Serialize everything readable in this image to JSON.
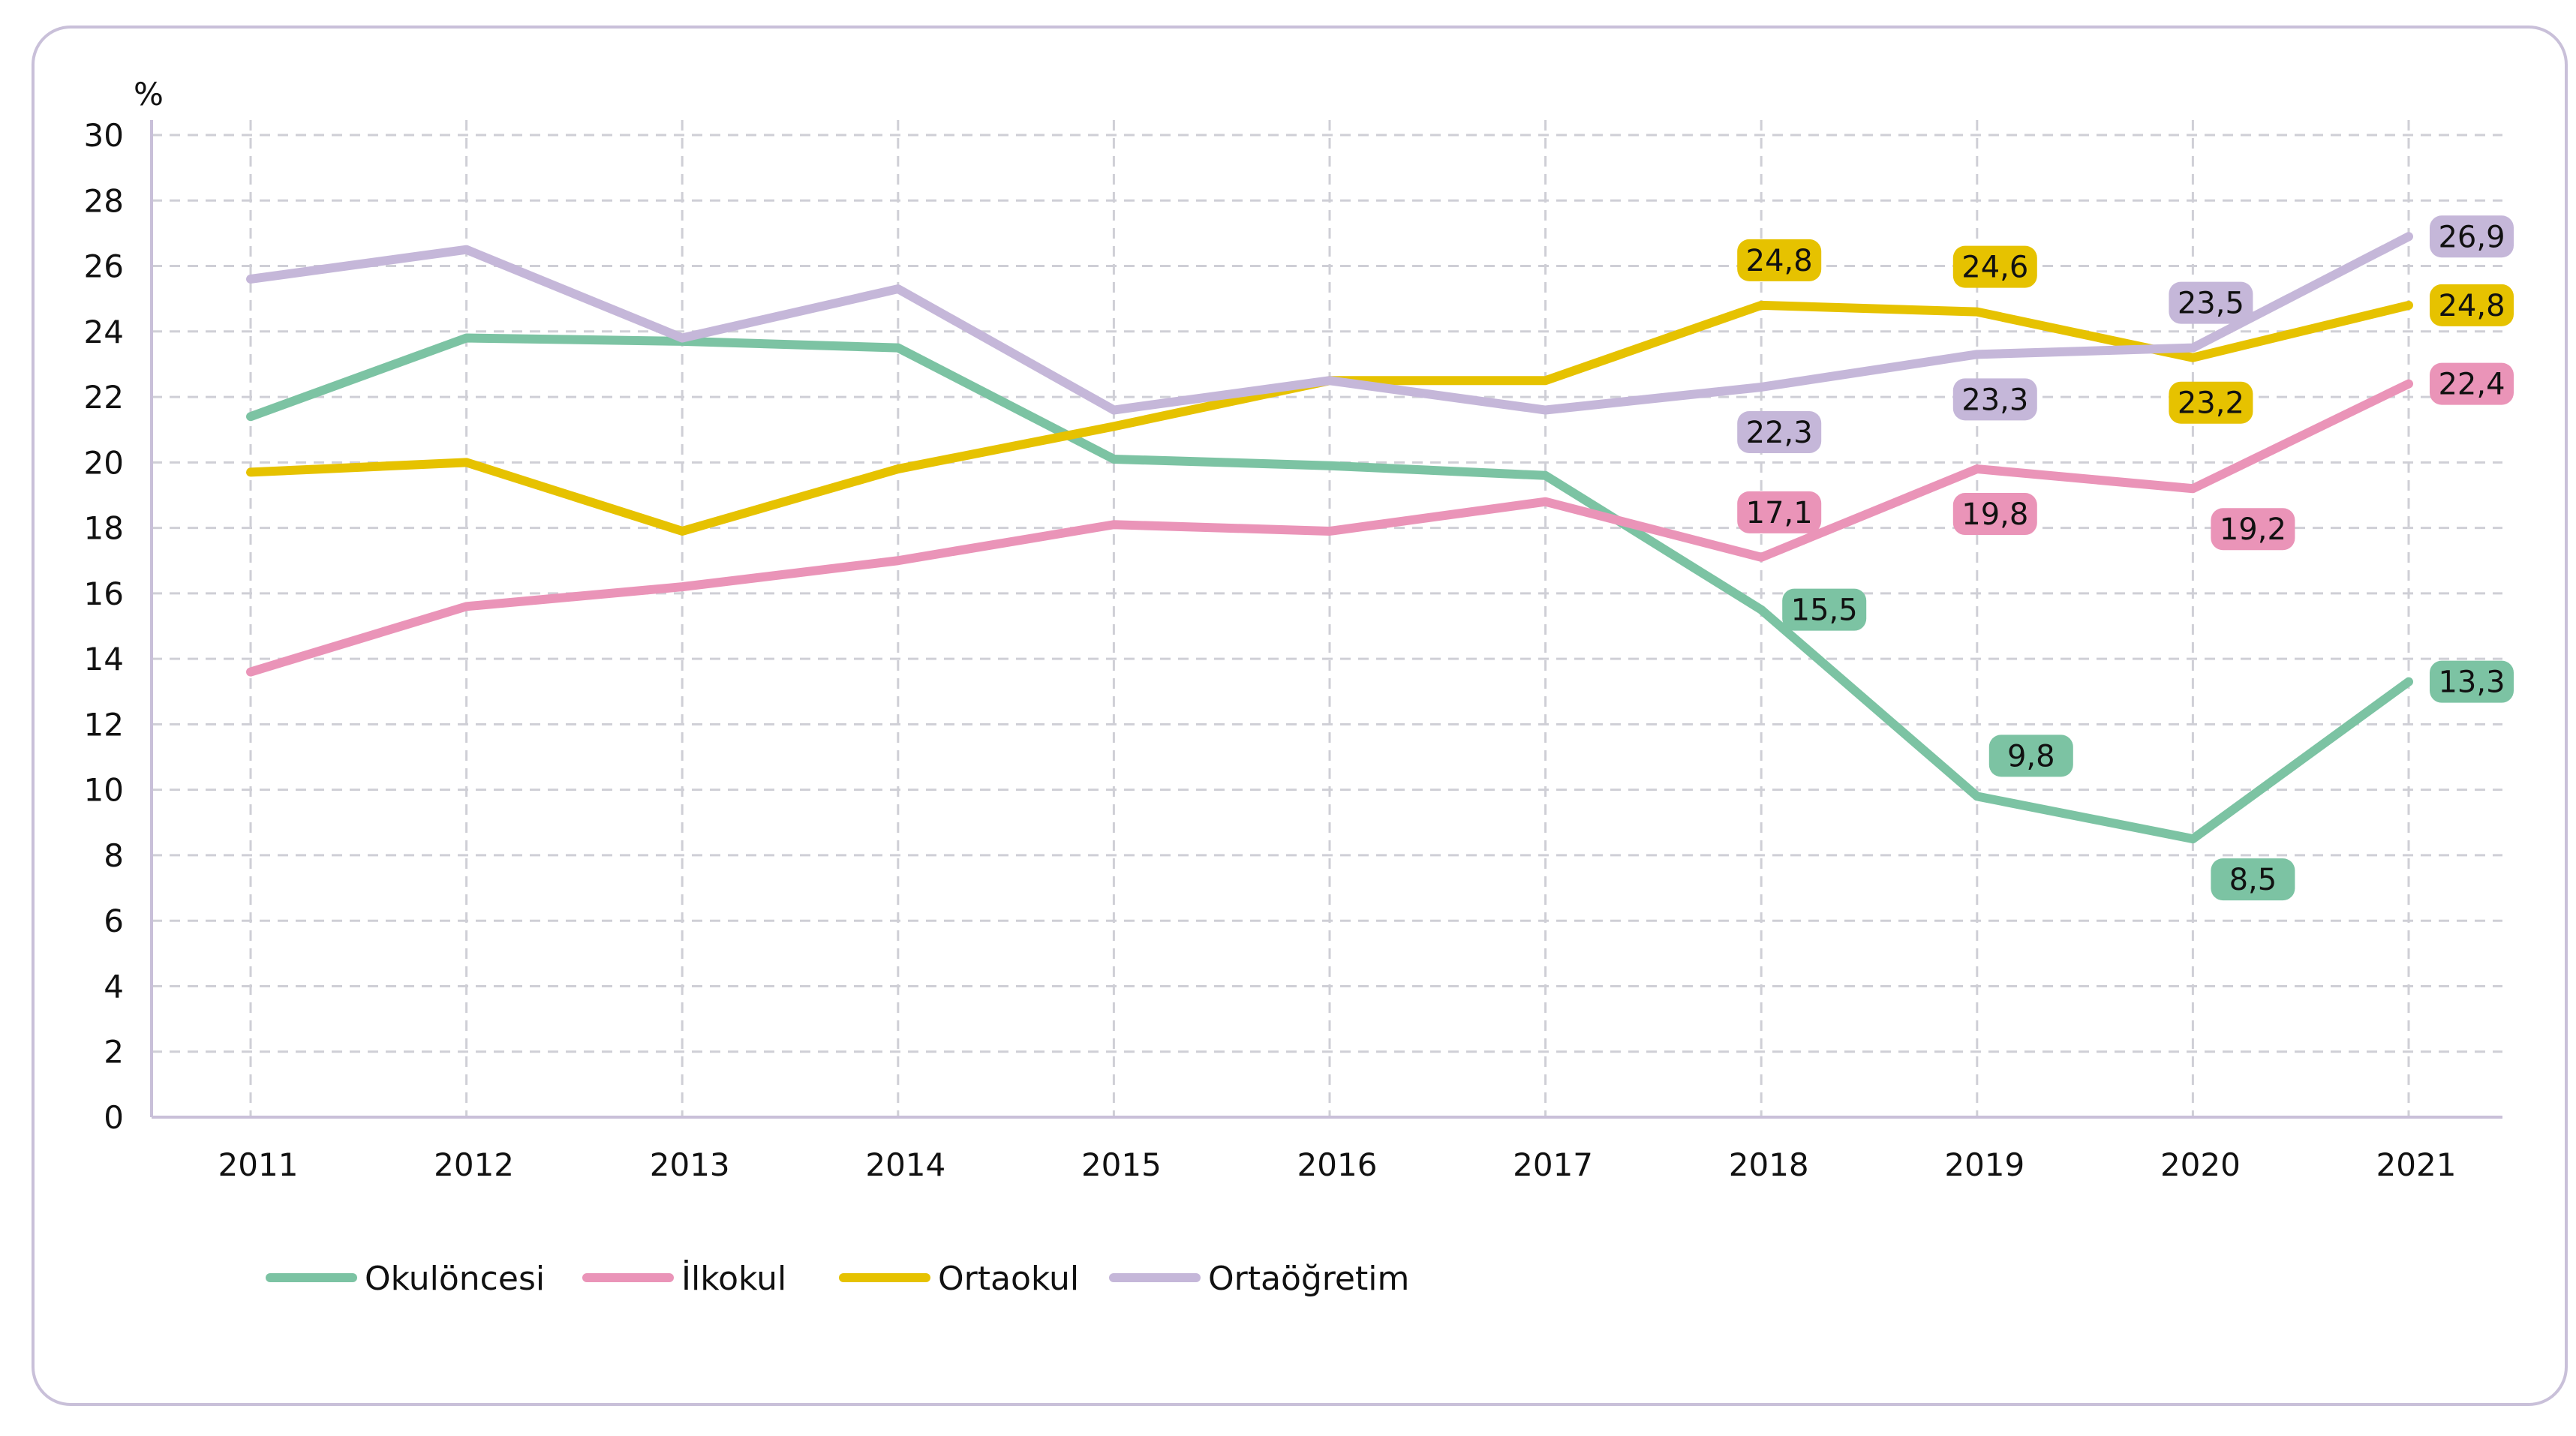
{
  "chart_data": {
    "type": "line",
    "ylabel": "%",
    "xlabel": "",
    "ylim": [
      0,
      30
    ],
    "yticks": [
      "0",
      "2",
      "4",
      "6",
      "8",
      "10",
      "12",
      "14",
      "16",
      "18",
      "20",
      "22",
      "24",
      "26",
      "28",
      "30"
    ],
    "categories": [
      "2011",
      "2012",
      "2013",
      "2014",
      "2015",
      "2016",
      "2017",
      "2018",
      "2019",
      "2020",
      "2021"
    ],
    "grid": "dashed",
    "legend_position": "bottom-left",
    "series": [
      {
        "name": "Okulöncesi",
        "color": "#7cc3a3",
        "values": [
          21.4,
          23.8,
          23.7,
          23.5,
          20.1,
          19.9,
          19.6,
          15.5,
          9.8,
          8.5,
          13.3
        ],
        "data_labels": [
          {
            "index": 7,
            "text": "15,5",
            "pos": "right"
          },
          {
            "index": 8,
            "text": "9,8",
            "pos": "above-right"
          },
          {
            "index": 9,
            "text": "8,5",
            "pos": "below-right"
          },
          {
            "index": 10,
            "text": "13,3",
            "pos": "right"
          }
        ]
      },
      {
        "name": "İlkokul",
        "color": "#ea94b8",
        "values": [
          13.6,
          15.6,
          16.2,
          17.0,
          18.1,
          17.9,
          18.8,
          17.1,
          19.8,
          19.2,
          22.4
        ],
        "data_labels": [
          {
            "index": 7,
            "text": "17,1",
            "pos": "above"
          },
          {
            "index": 8,
            "text": "19,8",
            "pos": "below"
          },
          {
            "index": 9,
            "text": "19,2",
            "pos": "below-right"
          },
          {
            "index": 10,
            "text": "22,4",
            "pos": "right"
          }
        ]
      },
      {
        "name": "Ortaokul",
        "color": "#e6c200",
        "values": [
          19.7,
          20.0,
          17.9,
          19.8,
          21.1,
          22.5,
          22.5,
          24.8,
          24.6,
          23.2,
          24.8
        ],
        "data_labels": [
          {
            "index": 7,
            "text": "24,8",
            "pos": "above"
          },
          {
            "index": 8,
            "text": "24,6",
            "pos": "above"
          },
          {
            "index": 9,
            "text": "23,2",
            "pos": "below"
          },
          {
            "index": 10,
            "text": "24,8",
            "pos": "right"
          }
        ]
      },
      {
        "name": "Ortaöğretim",
        "color": "#c5b7d9",
        "values": [
          25.6,
          26.5,
          23.8,
          25.3,
          21.6,
          22.5,
          21.6,
          22.3,
          23.3,
          23.5,
          26.9
        ],
        "data_labels": [
          {
            "index": 7,
            "text": "22,3",
            "pos": "below"
          },
          {
            "index": 8,
            "text": "23,3",
            "pos": "below"
          },
          {
            "index": 9,
            "text": "23,5",
            "pos": "above"
          },
          {
            "index": 10,
            "text": "26,9",
            "pos": "right"
          }
        ]
      }
    ]
  }
}
